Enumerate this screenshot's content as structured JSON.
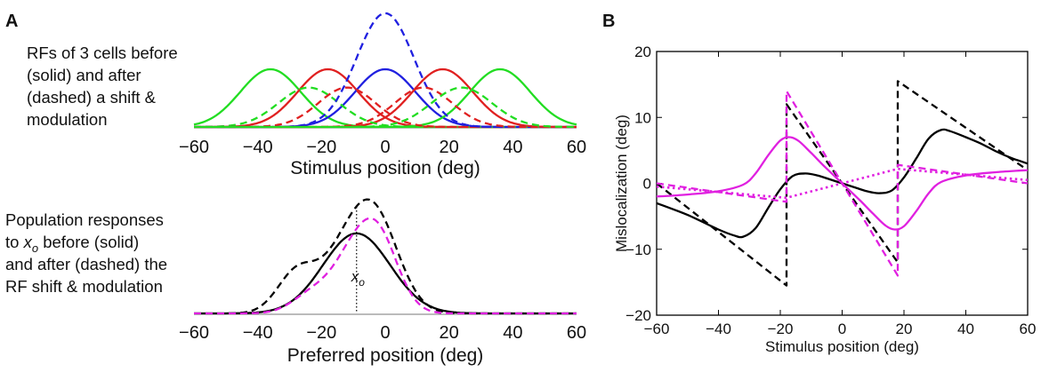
{
  "panels": {
    "a_label": "A",
    "b_label": "B"
  },
  "annotations": {
    "top_lines": [
      "RFs of 3 cells before",
      "(solid) and after",
      "(dashed) a shift &",
      "modulation"
    ],
    "bottom_line1": "Population responses",
    "bottom_line2_pre": "to ",
    "bottom_line2_var": "x",
    "bottom_line2_sub": "o",
    "bottom_line2_post": " before (solid)",
    "bottom_line3": "and after (dashed) the",
    "bottom_line4": "RF shift & modulation",
    "xo_var": "x",
    "xo_sub": "o"
  },
  "colors": {
    "green": "#22dd22",
    "red": "#e02020",
    "blue": "#2020e0",
    "black": "#000000",
    "magenta": "#e020e0"
  },
  "chart_data": [
    {
      "id": "A-top",
      "type": "line",
      "title": "",
      "xlabel": "Stimulus position (deg)",
      "ylabel": "",
      "xlim": [
        -60,
        60
      ],
      "ylim": [
        0,
        1.35
      ],
      "xticks": [
        -60,
        -40,
        -20,
        0,
        20,
        40,
        60
      ],
      "series": [
        {
          "name": "green-left-before",
          "color": "green",
          "style": "solid",
          "fn": "gauss",
          "mu": -36,
          "sigma": 9.5,
          "amp": 0.66
        },
        {
          "name": "red-left-before",
          "color": "red",
          "style": "solid",
          "fn": "gauss",
          "mu": -18,
          "sigma": 9.5,
          "amp": 0.66
        },
        {
          "name": "blue-center-before",
          "color": "blue",
          "style": "solid",
          "fn": "gauss",
          "mu": 0,
          "sigma": 9.5,
          "amp": 0.66
        },
        {
          "name": "red-right-before",
          "color": "red",
          "style": "solid",
          "fn": "gauss",
          "mu": 18,
          "sigma": 9.5,
          "amp": 0.66
        },
        {
          "name": "green-right-before",
          "color": "green",
          "style": "solid",
          "fn": "gauss",
          "mu": 36,
          "sigma": 9.5,
          "amp": 0.66
        },
        {
          "name": "green-left-after",
          "color": "green",
          "style": "dashed",
          "fn": "gauss",
          "mu": -24,
          "sigma": 9.5,
          "amp": 0.45
        },
        {
          "name": "red-left-after",
          "color": "red",
          "style": "dashed",
          "fn": "gauss",
          "mu": -12,
          "sigma": 9.0,
          "amp": 0.45
        },
        {
          "name": "blue-center-after",
          "color": "blue",
          "style": "dashed",
          "fn": "gauss",
          "mu": 0,
          "sigma": 9.0,
          "amp": 1.3
        },
        {
          "name": "red-right-after",
          "color": "red",
          "style": "dashed",
          "fn": "gauss",
          "mu": 12,
          "sigma": 9.0,
          "amp": 0.45
        },
        {
          "name": "green-right-after",
          "color": "green",
          "style": "dashed",
          "fn": "gauss",
          "mu": 24,
          "sigma": 9.5,
          "amp": 0.45
        }
      ]
    },
    {
      "id": "A-bottom",
      "type": "line",
      "title": "",
      "xlabel": "Preferred position (deg)",
      "ylabel": "",
      "xlim": [
        -60,
        60
      ],
      "ylim": [
        0,
        1.25
      ],
      "xticks": [
        -60,
        -40,
        -20,
        0,
        20,
        40,
        60
      ],
      "marker_x": -9,
      "series": [
        {
          "name": "before",
          "color": "black",
          "style": "solid",
          "fn": "gauss",
          "mu": -9,
          "sigma": 10.5,
          "amp": 0.88
        },
        {
          "name": "after-black",
          "color": "black",
          "style": "dashed",
          "fn": "sum",
          "parts": [
            [
              -28,
              6,
              0.42
            ],
            [
              -13,
              8,
              0.55
            ],
            [
              -3,
              7.5,
              0.95
            ]
          ]
        },
        {
          "name": "after-magenta",
          "color": "magenta",
          "style": "dashed",
          "fn": "sum",
          "parts": [
            [
              -22,
              6.5,
              0.24
            ],
            [
              -12,
              5.5,
              0.34
            ],
            [
              -3,
              6.5,
              0.93
            ]
          ]
        }
      ]
    },
    {
      "id": "B",
      "type": "line",
      "title": "",
      "xlabel": "Stimulus position (deg)",
      "ylabel": "Mislocalization (deg)",
      "xlim": [
        -60,
        60
      ],
      "ylim": [
        -20,
        20
      ],
      "xticks": [
        -60,
        -40,
        -20,
        0,
        20,
        40,
        60
      ],
      "yticks": [
        -20,
        -10,
        0,
        10,
        20
      ],
      "series": [
        {
          "name": "black-solid",
          "color": "black",
          "style": "solid",
          "x": [
            -60,
            -50,
            -40,
            -35,
            -32,
            -28,
            -24,
            -20,
            -16,
            -12,
            -8,
            -4,
            0,
            4,
            8,
            12,
            16,
            20,
            24,
            28,
            32,
            35,
            40,
            45,
            50,
            55,
            60
          ],
          "y": [
            -3,
            -4.8,
            -7,
            -7.9,
            -8.1,
            -6.8,
            -3.8,
            -0.9,
            1.1,
            1.5,
            1.2,
            0.6,
            0,
            -0.6,
            -1.2,
            -1.5,
            -1.1,
            0.9,
            3.8,
            6.8,
            8.1,
            7.9,
            7,
            6,
            4.8,
            3.8,
            3
          ]
        },
        {
          "name": "black-dashed",
          "color": "black",
          "style": "dashed",
          "x": [
            -60,
            -18,
            -18,
            18,
            18,
            60
          ],
          "y": [
            0,
            -15.5,
            12,
            -12,
            15.5,
            2
          ]
        },
        {
          "name": "magenta-solid",
          "color": "magenta",
          "style": "solid",
          "x": [
            -60,
            -50,
            -40,
            -32,
            -28,
            -24,
            -20,
            -17,
            -14,
            -10,
            -6,
            -2,
            0,
            2,
            6,
            10,
            14,
            17,
            20,
            24,
            28,
            32,
            40,
            50,
            60
          ],
          "y": [
            -2,
            -1.7,
            -1.2,
            -0.2,
            1.5,
            4.2,
            6.5,
            7,
            6.4,
            4.6,
            2.7,
            0.9,
            0,
            -0.9,
            -2.7,
            -4.6,
            -6.4,
            -7,
            -6.5,
            -4.2,
            -1.5,
            0.2,
            1.2,
            1.7,
            2
          ]
        },
        {
          "name": "magenta-dashed",
          "color": "magenta",
          "style": "dashed",
          "x": [
            -60,
            -18,
            -18,
            18,
            18,
            60
          ],
          "y": [
            0,
            -2.8,
            14,
            -14,
            2.8,
            0
          ]
        },
        {
          "name": "magenta-dotted",
          "color": "magenta",
          "style": "dotted",
          "x": [
            -60,
            -18,
            18,
            60
          ],
          "y": [
            -0.5,
            -2.2,
            2.2,
            0.5
          ]
        }
      ]
    }
  ]
}
